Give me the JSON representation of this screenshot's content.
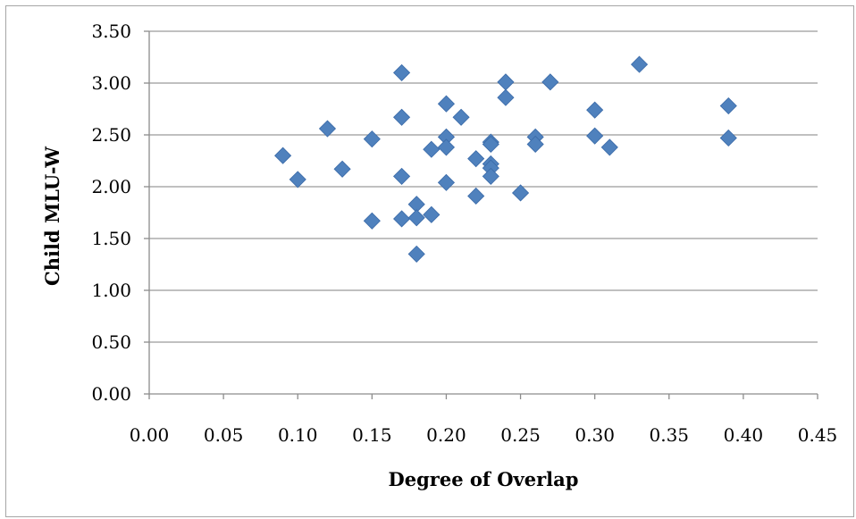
{
  "chart_data": {
    "type": "scatter",
    "title": "",
    "xlabel": "Degree of Overlap",
    "ylabel": "Child MLU-W",
    "xlim": [
      0,
      0.45
    ],
    "ylim": [
      0,
      3.5
    ],
    "x_ticks": [
      "0.00",
      "0.05",
      "0.10",
      "0.15",
      "0.20",
      "0.25",
      "0.30",
      "0.35",
      "0.40",
      "0.45"
    ],
    "y_ticks": [
      "0.00",
      "0.50",
      "1.00",
      "1.50",
      "2.00",
      "2.50",
      "3.00",
      "3.50"
    ],
    "grid": "horizontal",
    "legend": "none",
    "marker": "diamond",
    "color": "#4f81bd",
    "points": [
      {
        "x": 0.09,
        "y": 2.3
      },
      {
        "x": 0.1,
        "y": 2.07
      },
      {
        "x": 0.12,
        "y": 2.56
      },
      {
        "x": 0.13,
        "y": 2.17
      },
      {
        "x": 0.15,
        "y": 2.46
      },
      {
        "x": 0.15,
        "y": 1.67
      },
      {
        "x": 0.17,
        "y": 3.1
      },
      {
        "x": 0.17,
        "y": 2.67
      },
      {
        "x": 0.17,
        "y": 2.1
      },
      {
        "x": 0.17,
        "y": 1.69
      },
      {
        "x": 0.18,
        "y": 1.83
      },
      {
        "x": 0.18,
        "y": 1.7
      },
      {
        "x": 0.18,
        "y": 1.35
      },
      {
        "x": 0.19,
        "y": 2.36
      },
      {
        "x": 0.19,
        "y": 1.73
      },
      {
        "x": 0.2,
        "y": 2.8
      },
      {
        "x": 0.2,
        "y": 2.48
      },
      {
        "x": 0.2,
        "y": 2.38
      },
      {
        "x": 0.2,
        "y": 2.04
      },
      {
        "x": 0.21,
        "y": 2.67
      },
      {
        "x": 0.22,
        "y": 2.27
      },
      {
        "x": 0.22,
        "y": 1.91
      },
      {
        "x": 0.23,
        "y": 2.43
      },
      {
        "x": 0.23,
        "y": 2.41
      },
      {
        "x": 0.23,
        "y": 2.22
      },
      {
        "x": 0.23,
        "y": 2.18
      },
      {
        "x": 0.23,
        "y": 2.1
      },
      {
        "x": 0.24,
        "y": 3.01
      },
      {
        "x": 0.24,
        "y": 2.86
      },
      {
        "x": 0.25,
        "y": 1.94
      },
      {
        "x": 0.26,
        "y": 2.48
      },
      {
        "x": 0.26,
        "y": 2.41
      },
      {
        "x": 0.27,
        "y": 3.01
      },
      {
        "x": 0.3,
        "y": 2.74
      },
      {
        "x": 0.3,
        "y": 2.49
      },
      {
        "x": 0.31,
        "y": 2.38
      },
      {
        "x": 0.33,
        "y": 3.18
      },
      {
        "x": 0.39,
        "y": 2.78
      },
      {
        "x": 0.39,
        "y": 2.47
      }
    ]
  }
}
